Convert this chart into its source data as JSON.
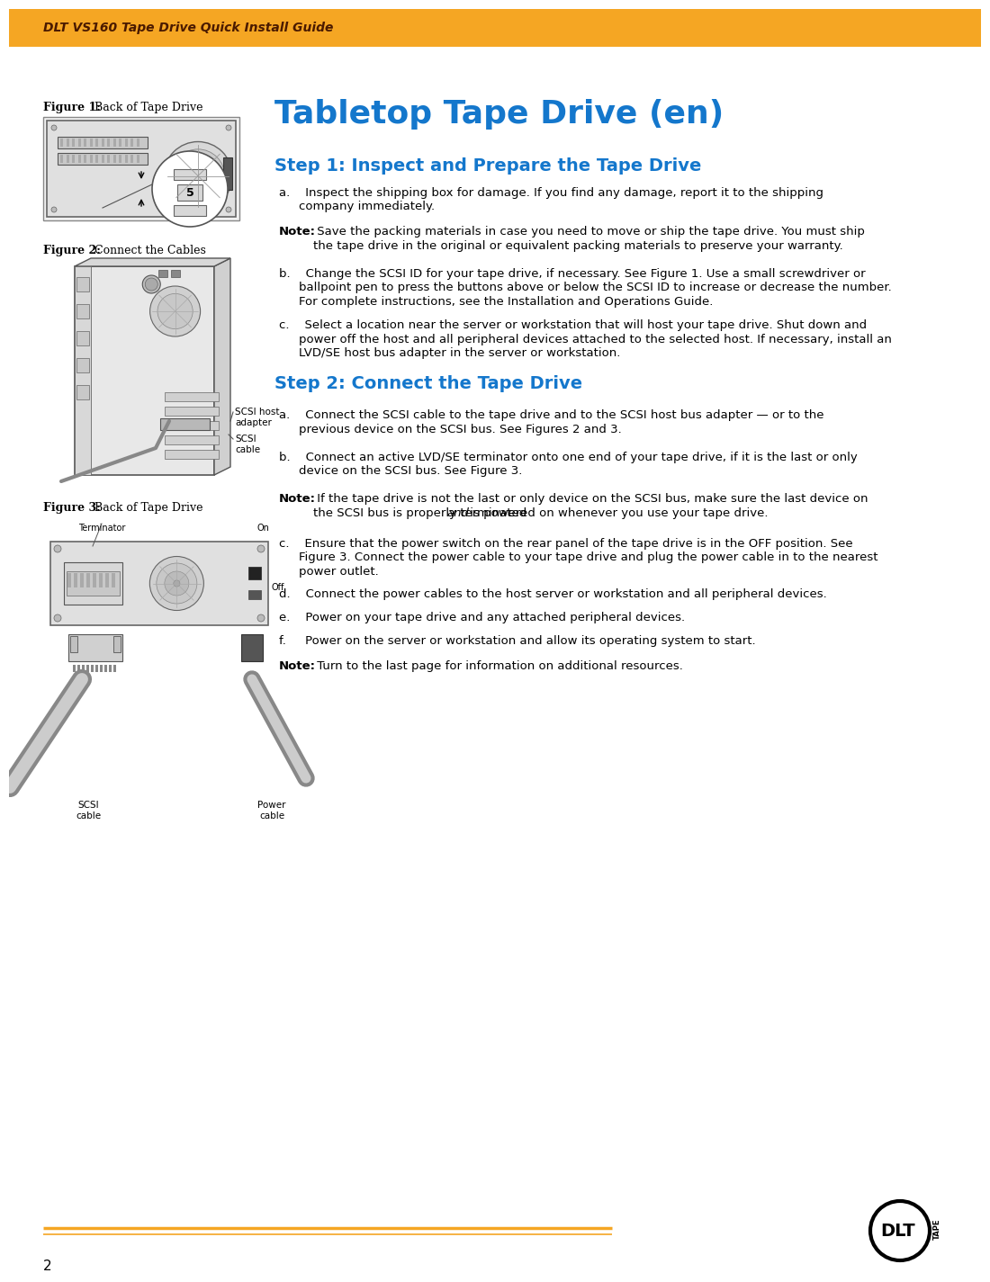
{
  "page_bg": "#ffffff",
  "header_bg": "#F5A623",
  "header_text": "DLT VS160 Tape Drive Quick Install Guide",
  "header_text_color": "#4a1a00",
  "title": "Tabletop Tape Drive (en)",
  "title_color": "#1477CC",
  "step1_heading": "Step 1: Inspect and Prepare the Tape Drive",
  "step2_heading": "Step 2: Connect the Tape Drive",
  "heading_color": "#1477CC",
  "fig1_label_bold": "Figure 1:",
  "fig1_label_rest": " Back of Tape Drive",
  "fig2_label_bold": "Figure 2:",
  "fig2_label_rest": " Connect the Cables",
  "fig3_label_bold": "Figure 3:",
  "fig3_label_rest": " Back of Tape Drive",
  "body_color": "#000000",
  "footer_line_color": "#F5A623",
  "page_num": "2"
}
